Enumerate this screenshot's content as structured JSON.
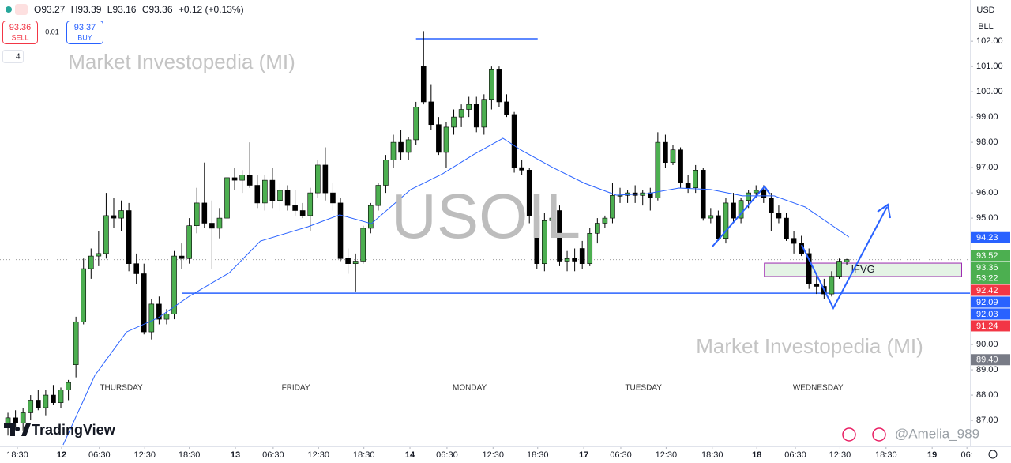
{
  "chart_data": {
    "type": "candlestick",
    "title": "USOIL",
    "watermarks": [
      "Market Investopedia (MI)",
      "Market Investopedia (MI)"
    ],
    "toolbar": {
      "ohlc_text": [
        "O93.27",
        "H93.39",
        "L93.16",
        "C93.36",
        "+0.12 (+0.13%)"
      ],
      "sell_price": 93.36,
      "sell_label": "SELL",
      "spread": 0.01,
      "buy_price": 93.37,
      "buy_label": "BUY",
      "indicators": 4
    },
    "currency": "USD",
    "unit": "BLL",
    "brand": "TradingView",
    "author": "@Amelia_989",
    "up_color": "#4caf50",
    "down_color": "#000000",
    "xlim": [
      -1.05,
      127.3
    ],
    "ylim": [
      85.97,
      103.63
    ],
    "grid": false,
    "yticks": [
      {
        "value": 102,
        "label": "102.00"
      },
      {
        "value": 101,
        "label": "101.00"
      },
      {
        "value": 100,
        "label": "100.00"
      },
      {
        "value": 99,
        "label": "99.00"
      },
      {
        "value": 98,
        "label": "98.00"
      },
      {
        "value": 97,
        "label": "97.00"
      },
      {
        "value": 96,
        "label": "96.00"
      },
      {
        "value": 95,
        "label": "95.00"
      },
      {
        "value": 90,
        "label": "90.00"
      },
      {
        "value": 89,
        "label": "89.00"
      },
      {
        "value": 88,
        "label": "88.00"
      },
      {
        "value": 87,
        "label": "87.00"
      }
    ],
    "xticks": [
      {
        "value": 1.25,
        "label": "18:30"
      },
      {
        "value": 7.1,
        "label": "12"
      },
      {
        "value": 12.1,
        "label": "06:30"
      },
      {
        "value": 18.1,
        "label": "12:30"
      },
      {
        "value": 24.0,
        "label": "18:30"
      },
      {
        "value": 30.1,
        "label": "13"
      },
      {
        "value": 35.1,
        "label": "06:30"
      },
      {
        "value": 41.1,
        "label": "12:30"
      },
      {
        "value": 47.1,
        "label": "18:30"
      },
      {
        "value": 53.2,
        "label": "14"
      },
      {
        "value": 58.1,
        "label": "06:30"
      },
      {
        "value": 64.2,
        "label": "12:30"
      },
      {
        "value": 70.1,
        "label": "18:30"
      },
      {
        "value": 76.2,
        "label": "17"
      },
      {
        "value": 81.1,
        "label": "06:30"
      },
      {
        "value": 87.1,
        "label": "12:30"
      },
      {
        "value": 93.2,
        "label": "18:30"
      },
      {
        "value": 99.1,
        "label": "18"
      },
      {
        "value": 104.2,
        "label": "06:30"
      },
      {
        "value": 110.1,
        "label": "12:30"
      },
      {
        "value": 116.2,
        "label": "18:30"
      },
      {
        "value": 122.3,
        "label": "19"
      },
      {
        "value": 126.9,
        "label": "06:"
      }
    ],
    "day_labels": [
      {
        "value": 15.0,
        "label": "THURSDAY"
      },
      {
        "value": 38.1,
        "label": "FRIDAY"
      },
      {
        "value": 61.1,
        "label": "MONDAY"
      },
      {
        "value": 84.1,
        "label": "TUESDAY"
      },
      {
        "value": 107.2,
        "label": "WEDNESDAY"
      }
    ],
    "ohlc": [
      [
        86.8,
        87.3,
        86.4,
        87.1
      ],
      [
        87.1,
        87.4,
        86.7,
        86.9
      ],
      [
        86.9,
        87.5,
        86.6,
        87.3
      ],
      [
        87.3,
        88.0,
        87.0,
        87.8
      ],
      [
        87.8,
        88.2,
        87.4,
        87.5
      ],
      [
        87.5,
        88.2,
        87.2,
        88.0
      ],
      [
        88.0,
        88.4,
        87.6,
        87.7
      ],
      [
        87.7,
        88.3,
        87.5,
        88.2
      ],
      [
        88.2,
        88.6,
        87.8,
        88.5
      ],
      [
        89.2,
        91.1,
        88.7,
        90.9
      ],
      [
        90.9,
        93.4,
        90.8,
        93.0
      ],
      [
        93.0,
        93.8,
        92.6,
        93.5
      ],
      [
        93.5,
        94.5,
        93.1,
        93.6
      ],
      [
        93.6,
        96.0,
        93.4,
        95.1
      ],
      [
        95.1,
        95.8,
        94.6,
        95.0
      ],
      [
        95.0,
        95.7,
        94.5,
        95.3
      ],
      [
        95.3,
        95.6,
        92.9,
        93.2
      ],
      [
        93.2,
        93.6,
        92.4,
        92.8
      ],
      [
        92.8,
        93.2,
        90.4,
        90.5
      ],
      [
        90.5,
        91.8,
        90.2,
        91.6
      ],
      [
        91.6,
        91.9,
        90.8,
        91.0
      ],
      [
        91.0,
        91.4,
        90.8,
        91.2
      ],
      [
        91.2,
        93.7,
        91.0,
        93.5
      ],
      [
        93.5,
        94.0,
        93.0,
        93.4
      ],
      [
        93.4,
        95.0,
        93.2,
        94.7
      ],
      [
        94.7,
        96.2,
        94.4,
        95.6
      ],
      [
        95.6,
        97.2,
        94.6,
        94.8
      ],
      [
        94.8,
        95.7,
        93.0,
        94.6
      ],
      [
        94.6,
        95.4,
        94.2,
        95.0
      ],
      [
        95.0,
        96.8,
        94.9,
        96.6
      ],
      [
        96.6,
        97.0,
        96.1,
        96.5
      ],
      [
        96.5,
        96.9,
        96.0,
        96.7
      ],
      [
        96.7,
        98.0,
        96.2,
        96.3
      ],
      [
        96.3,
        96.7,
        95.4,
        95.6
      ],
      [
        95.6,
        96.7,
        95.3,
        96.5
      ],
      [
        96.5,
        97.0,
        95.4,
        95.7
      ],
      [
        95.7,
        96.4,
        95.3,
        96.1
      ],
      [
        96.1,
        96.3,
        95.3,
        95.5
      ],
      [
        95.5,
        96.1,
        95.1,
        95.3
      ],
      [
        95.3,
        95.6,
        95.0,
        95.1
      ],
      [
        95.1,
        96.2,
        94.5,
        96.0
      ],
      [
        96.0,
        97.3,
        95.8,
        97.1
      ],
      [
        97.1,
        97.8,
        95.7,
        96.0
      ],
      [
        96.0,
        96.4,
        95.3,
        95.6
      ],
      [
        95.6,
        95.8,
        93.3,
        93.4
      ],
      [
        93.4,
        93.8,
        92.8,
        93.2
      ],
      [
        93.2,
        93.6,
        92.1,
        93.3
      ],
      [
        93.3,
        94.7,
        93.2,
        94.6
      ],
      [
        94.6,
        95.6,
        94.4,
        95.5
      ],
      [
        95.5,
        96.4,
        95.3,
        96.3
      ],
      [
        96.3,
        97.5,
        96.0,
        97.3
      ],
      [
        97.3,
        98.3,
        97.0,
        98.0
      ],
      [
        98.0,
        98.5,
        97.3,
        97.6
      ],
      [
        97.6,
        98.2,
        97.3,
        98.1
      ],
      [
        98.1,
        99.6,
        97.9,
        99.4
      ],
      [
        101.0,
        102.4,
        99.5,
        99.6
      ],
      [
        99.6,
        100.3,
        98.5,
        98.7
      ],
      [
        98.7,
        99.0,
        97.5,
        97.6
      ],
      [
        97.6,
        98.8,
        97.0,
        98.6
      ],
      [
        98.6,
        99.3,
        98.3,
        99.0
      ],
      [
        99.0,
        99.5,
        98.6,
        99.3
      ],
      [
        99.3,
        99.8,
        99.0,
        99.5
      ],
      [
        99.5,
        99.8,
        98.4,
        98.6
      ],
      [
        98.6,
        99.9,
        98.3,
        99.7
      ],
      [
        99.7,
        101.0,
        99.3,
        100.9
      ],
      [
        100.9,
        101.0,
        99.4,
        99.6
      ],
      [
        99.6,
        99.9,
        99.0,
        99.1
      ],
      [
        99.1,
        99.2,
        96.8,
        97.0
      ],
      [
        97.0,
        97.3,
        96.7,
        96.9
      ],
      [
        96.9,
        97.0,
        94.8,
        95.1
      ],
      [
        95.1,
        95.4,
        93.0,
        93.2
      ],
      [
        93.2,
        95.2,
        92.9,
        94.9
      ],
      [
        94.9,
        95.4,
        94.6,
        95.0
      ],
      [
        95.3,
        95.5,
        93.1,
        93.3
      ],
      [
        93.3,
        93.7,
        92.9,
        93.4
      ],
      [
        93.4,
        93.8,
        92.9,
        93.3
      ],
      [
        93.8,
        94.1,
        93.0,
        93.2
      ],
      [
        93.2,
        94.6,
        93.1,
        94.4
      ],
      [
        94.4,
        95.0,
        94.0,
        94.8
      ],
      [
        94.8,
        95.1,
        94.6,
        95.0
      ],
      [
        95.0,
        96.4,
        94.8,
        95.9
      ],
      [
        95.9,
        96.2,
        95.6,
        95.9
      ],
      [
        95.9,
        96.1,
        95.6,
        96.0
      ],
      [
        96.0,
        96.3,
        95.6,
        95.9
      ],
      [
        95.9,
        96.1,
        95.5,
        96.0
      ],
      [
        96.0,
        96.2,
        95.3,
        95.8
      ],
      [
        95.8,
        98.4,
        95.7,
        98.0
      ],
      [
        98.0,
        98.3,
        97.0,
        97.2
      ],
      [
        97.2,
        97.9,
        97.1,
        97.7
      ],
      [
        97.7,
        97.8,
        96.2,
        96.4
      ],
      [
        96.4,
        96.7,
        96.0,
        96.2
      ],
      [
        96.2,
        97.1,
        96.0,
        96.9
      ],
      [
        96.9,
        97.0,
        94.9,
        95.0
      ],
      [
        95.0,
        95.4,
        94.8,
        95.1
      ],
      [
        95.1,
        95.3,
        94.1,
        94.2
      ],
      [
        94.2,
        95.8,
        94.0,
        95.6
      ],
      [
        95.6,
        96.0,
        94.8,
        95.0
      ],
      [
        95.0,
        95.8,
        94.8,
        95.7
      ],
      [
        95.7,
        96.1,
        95.4,
        96.0
      ],
      [
        96.0,
        96.3,
        95.8,
        96.1
      ],
      [
        96.1,
        96.3,
        95.6,
        95.8
      ],
      [
        95.8,
        96.0,
        94.5,
        95.2
      ],
      [
        95.2,
        95.5,
        94.8,
        95.0
      ],
      [
        95.0,
        95.2,
        94.1,
        94.2
      ],
      [
        94.2,
        94.5,
        93.6,
        94.0
      ],
      [
        94.0,
        94.3,
        93.5,
        93.6
      ],
      [
        93.6,
        93.8,
        92.2,
        92.4
      ],
      [
        92.4,
        92.8,
        92.0,
        92.3
      ],
      [
        92.3,
        92.6,
        91.8,
        92.0
      ],
      [
        92.0,
        92.9,
        91.9,
        92.7
      ],
      [
        92.7,
        93.4,
        92.6,
        93.3
      ],
      [
        93.27,
        93.39,
        93.16,
        93.36
      ]
    ],
    "ma": {
      "color": "#2962ff",
      "x": [
        7.3,
        11.5,
        15.7,
        19.9,
        24.0,
        29.3,
        33.4,
        39.7,
        43.9,
        48.1,
        53.3,
        57.5,
        61.7,
        65.5,
        67.9,
        72.1,
        76.3,
        80.5,
        84.6,
        88.8,
        93.0,
        97.2,
        101.4,
        105.5,
        111.3
      ],
      "values": [
        86.03,
        88.78,
        90.5,
        91.06,
        91.91,
        92.84,
        94.09,
        94.66,
        95.13,
        94.78,
        96.13,
        96.75,
        97.53,
        98.16,
        97.69,
        97.0,
        96.38,
        95.91,
        95.97,
        96.19,
        96.13,
        95.88,
        95.88,
        95.44,
        94.25
      ]
    },
    "levels": [
      {
        "value": 102.1,
        "from": 54.0,
        "to": 70.1,
        "color": "#2962ff"
      },
      {
        "value": 92.03,
        "from": 23.0,
        "to": 127.3,
        "color": "#2962ff"
      }
    ],
    "zone": {
      "label": "IFVG",
      "low": 92.69,
      "high": 93.22,
      "from": 100.1,
      "to": 126.2
    },
    "price_labels": [
      {
        "value": 94.23,
        "color": "#2962ff"
      },
      {
        "value": 93.52,
        "color": "#4caf50"
      },
      {
        "value": 93.36,
        "color": "#4caf50",
        "countdown": "53:22"
      },
      {
        "value": 92.42,
        "color": "#f23645"
      },
      {
        "value": 92.09,
        "color": "#2962ff"
      },
      {
        "value": 92.03,
        "color": "#2962ff"
      },
      {
        "value": 91.24,
        "color": "#f23645"
      },
      {
        "value": 89.4,
        "label": "89.40",
        "color": "#787b86"
      }
    ]
  }
}
